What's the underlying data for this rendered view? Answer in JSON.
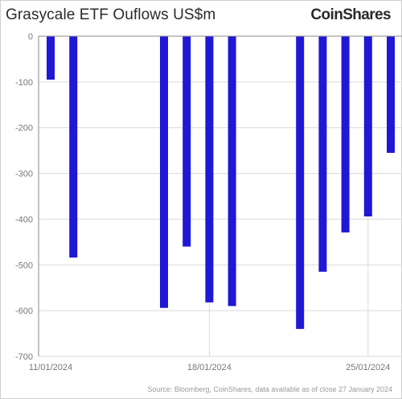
{
  "title": "Grasycale ETF Ouflows US$m",
  "logo_text": "CoinShares",
  "source": "Source: Bloomberg, CoinShares, data available as of close 27 January 2024",
  "colors": {
    "bar": "#1f18d6",
    "grid": "#d9d9d9",
    "axis": "#888888",
    "text": "#2b2b2b"
  },
  "chart_data": {
    "type": "bar",
    "title": "Grasycale ETF Ouflows US$m",
    "xlabel": "",
    "ylabel": "",
    "ylim": [
      -700,
      0
    ],
    "yticks": [
      0,
      -100,
      -200,
      -300,
      -400,
      -500,
      -600,
      -700
    ],
    "ytick_labels": [
      "0",
      "-100",
      "-200",
      "-300",
      "-400",
      "-500",
      "-600",
      "-700"
    ],
    "xticks": [
      "11/01/2024",
      "18/01/2024",
      "25/01/2024"
    ],
    "x_gridlines_at": [
      "11/01/2024",
      "18/01/2024",
      "25/01/2024"
    ],
    "x_range": [
      "11/01/2024",
      "26/01/2024"
    ],
    "bars": [
      {
        "date": "11/01/2024",
        "value": -95
      },
      {
        "date": "12/01/2024",
        "value": -484
      },
      {
        "date": "16/01/2024",
        "value": -594
      },
      {
        "date": "17/01/2024",
        "value": -460
      },
      {
        "date": "18/01/2024",
        "value": -582
      },
      {
        "date": "19/01/2024",
        "value": -590
      },
      {
        "date": "22/01/2024",
        "value": -640
      },
      {
        "date": "23/01/2024",
        "value": -515
      },
      {
        "date": "24/01/2024",
        "value": -429
      },
      {
        "date": "25/01/2024",
        "value": -394
      },
      {
        "date": "26/01/2024",
        "value": -255
      }
    ],
    "grid": true,
    "legend": "none"
  }
}
